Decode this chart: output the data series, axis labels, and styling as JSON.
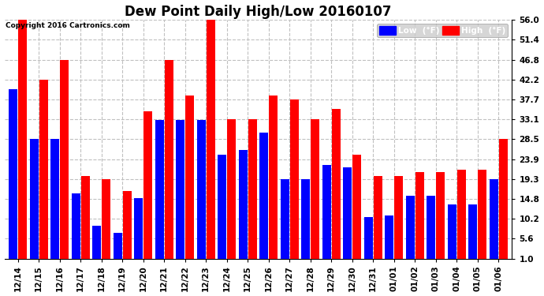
{
  "title": "Dew Point Daily High/Low 20160107",
  "copyright": "Copyright 2016 Cartronics.com",
  "dates": [
    "12/14",
    "12/15",
    "12/16",
    "12/17",
    "12/18",
    "12/19",
    "12/20",
    "12/21",
    "12/22",
    "12/23",
    "12/24",
    "12/25",
    "12/26",
    "12/27",
    "12/28",
    "12/29",
    "12/30",
    "12/31",
    "01/01",
    "01/02",
    "01/03",
    "01/04",
    "01/05",
    "01/06"
  ],
  "high": [
    56.0,
    42.2,
    46.8,
    20.0,
    19.3,
    16.5,
    35.0,
    46.8,
    38.5,
    56.0,
    33.1,
    33.1,
    38.5,
    37.7,
    33.1,
    35.5,
    25.0,
    20.0,
    20.0,
    21.0,
    21.0,
    21.5,
    21.5,
    28.5
  ],
  "low": [
    40.0,
    28.5,
    28.5,
    16.0,
    8.5,
    7.0,
    15.0,
    33.0,
    33.0,
    33.0,
    25.0,
    26.0,
    30.0,
    19.3,
    19.3,
    22.5,
    22.0,
    10.5,
    11.0,
    15.5,
    15.5,
    13.5,
    13.5,
    19.3
  ],
  "ylim": [
    1.0,
    56.0
  ],
  "yticks": [
    1.0,
    5.6,
    10.2,
    14.8,
    19.3,
    23.9,
    28.5,
    33.1,
    37.7,
    42.2,
    46.8,
    51.4,
    56.0
  ],
  "bar_color_high": "#ff0000",
  "bar_color_low": "#0000ff",
  "background_color": "#ffffff",
  "grid_color": "#c0c0c0",
  "title_fontsize": 12,
  "tick_fontsize": 7.5,
  "legend_low_label": "Low  (°F)",
  "legend_high_label": "High  (°F)"
}
